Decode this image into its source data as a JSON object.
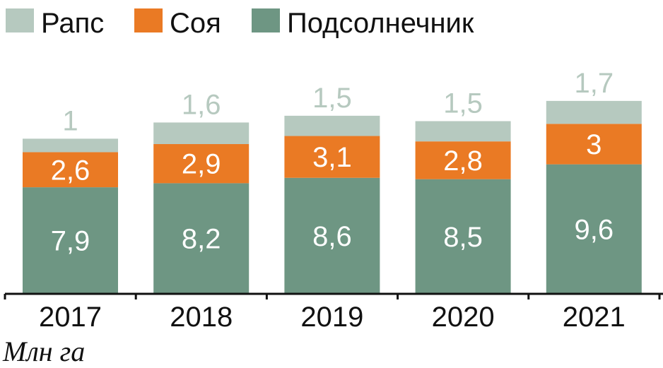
{
  "chart_data": {
    "type": "bar",
    "stacked": true,
    "categories": [
      "2017",
      "2018",
      "2019",
      "2020",
      "2021"
    ],
    "series": [
      {
        "name": "Подсолнечник",
        "color": "#6e9683",
        "label_color": "#ffffff",
        "values": [
          7.9,
          8.2,
          8.6,
          8.5,
          9.6
        ],
        "labels": [
          "7,9",
          "8,2",
          "8,6",
          "8,5",
          "9,6"
        ]
      },
      {
        "name": "Соя",
        "color": "#ea7a24",
        "label_color": "#ffffff",
        "values": [
          2.6,
          2.9,
          3.1,
          2.8,
          3
        ],
        "labels": [
          "2,6",
          "2,9",
          "3,1",
          "2,8",
          "3"
        ]
      },
      {
        "name": "Рапс",
        "color": "#b6c9bf",
        "label_color": "#b6c9bf",
        "values": [
          1,
          1.6,
          1.5,
          1.5,
          1.7
        ],
        "labels": [
          "1",
          "1,6",
          "1,5",
          "1,5",
          "1,7"
        ]
      }
    ],
    "legend_order": [
      "Рапс",
      "Соя",
      "Подсолнечник"
    ],
    "legend_placement": "top-left",
    "unit_label": "Млн га",
    "grid": false
  }
}
